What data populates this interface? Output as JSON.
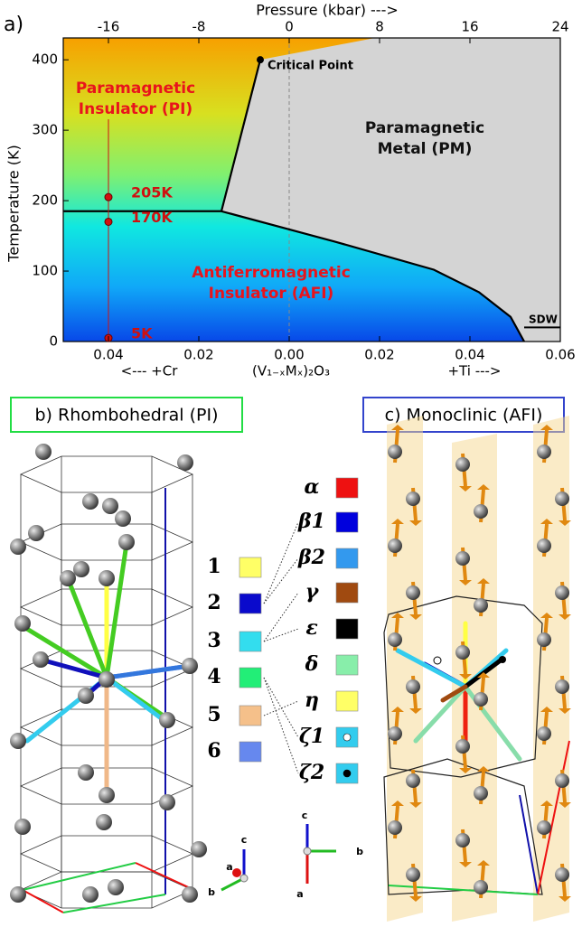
{
  "panel_a": {
    "label": "a)",
    "x_axis": {
      "label_parts": [
        "<---   +Cr",
        "(V₁₋ₓMₓ)₂O₃",
        "+Ti   --->"
      ],
      "xlim": [
        -0.05,
        0.06
      ],
      "xticks": [
        {
          "value": -0.04,
          "label": "0.04"
        },
        {
          "value": -0.02,
          "label": "0.02"
        },
        {
          "value": 0,
          "label": "0.00"
        },
        {
          "value": 0.02,
          "label": "0.02"
        },
        {
          "value": 0.04,
          "label": "0.04"
        },
        {
          "value": 0.06,
          "label": "0.06"
        }
      ]
    },
    "top_axis": {
      "label": "Pressure (kbar) --->",
      "xlim": [
        -20,
        24
      ],
      "xticks": [
        -16,
        -8,
        0,
        8,
        16,
        24
      ]
    },
    "y_axis": {
      "label": "Temperature (K)",
      "ylim": [
        0,
        431
      ],
      "yticks": [
        0,
        100,
        200,
        300,
        400
      ]
    },
    "regions": [
      {
        "lines": [
          "Paramagnetic",
          "Insulator (PI)"
        ],
        "color": "#e8141c"
      },
      {
        "lines": [
          "Paramagnetic",
          "Metal (PM)"
        ],
        "color": "#111111"
      },
      {
        "lines": [
          "Antiferromagnetic",
          "Insulator (AFI)"
        ],
        "color": "#e8141c"
      }
    ],
    "critical_point": {
      "label": "Critical Point",
      "x": -0.0064,
      "T": 400
    },
    "sdw": {
      "label": "SDW",
      "x": [
        0.052,
        0.06
      ],
      "T": [
        20,
        20
      ]
    },
    "measurements": {
      "x": -0.04,
      "color": "#d01010",
      "points": [
        {
          "T": 205,
          "label": "205K"
        },
        {
          "T": 170,
          "label": "170K"
        },
        {
          "T": 5,
          "label": "5K"
        }
      ]
    },
    "boundaries": [
      {
        "x": [
          -0.05,
          -0.015
        ],
        "T": [
          185,
          185
        ]
      },
      {
        "x": [
          -0.015,
          -0.0064
        ],
        "T": [
          185,
          400
        ]
      },
      {
        "x": [
          -0.015,
          0.01,
          0.032,
          0.042,
          0.049,
          0.052
        ],
        "T": [
          185,
          142,
          102,
          70,
          35,
          0
        ]
      }
    ],
    "pm_top": {
      "x": 0.019,
      "T": 431
    }
  },
  "panel_b": {
    "title": "b) Rhombohedral (PI)",
    "axes": [
      "c",
      "a",
      "b"
    ]
  },
  "panel_c": {
    "title": "c) Monoclinic (AFI)",
    "axes": [
      "c",
      "b",
      "a"
    ]
  },
  "bond_legend_b": [
    {
      "label": "1",
      "color": "#ffff66"
    },
    {
      "label": "2",
      "color": "#0a0acc"
    },
    {
      "label": "3",
      "color": "#33ddee"
    },
    {
      "label": "4",
      "color": "#22ee77"
    },
    {
      "label": "5",
      "color": "#f5c08a"
    },
    {
      "label": "6",
      "color": "#6688ee"
    }
  ],
  "bond_legend_c": [
    {
      "label": "α",
      "color": "#ee1111"
    },
    {
      "label": "β1",
      "color": "#0000dd"
    },
    {
      "label": "β2",
      "color": "#3399ee"
    },
    {
      "label": "γ",
      "color": "#a04a10"
    },
    {
      "label": "ε",
      "color": "#000000"
    },
    {
      "label": "δ",
      "color": "#88eeaa"
    },
    {
      "label": "η",
      "color": "#ffff66"
    },
    {
      "label": "ζ1",
      "color": "#33ccee",
      "dot": "white"
    },
    {
      "label": "ζ2",
      "color": "#33ccee",
      "dot": "black"
    }
  ]
}
